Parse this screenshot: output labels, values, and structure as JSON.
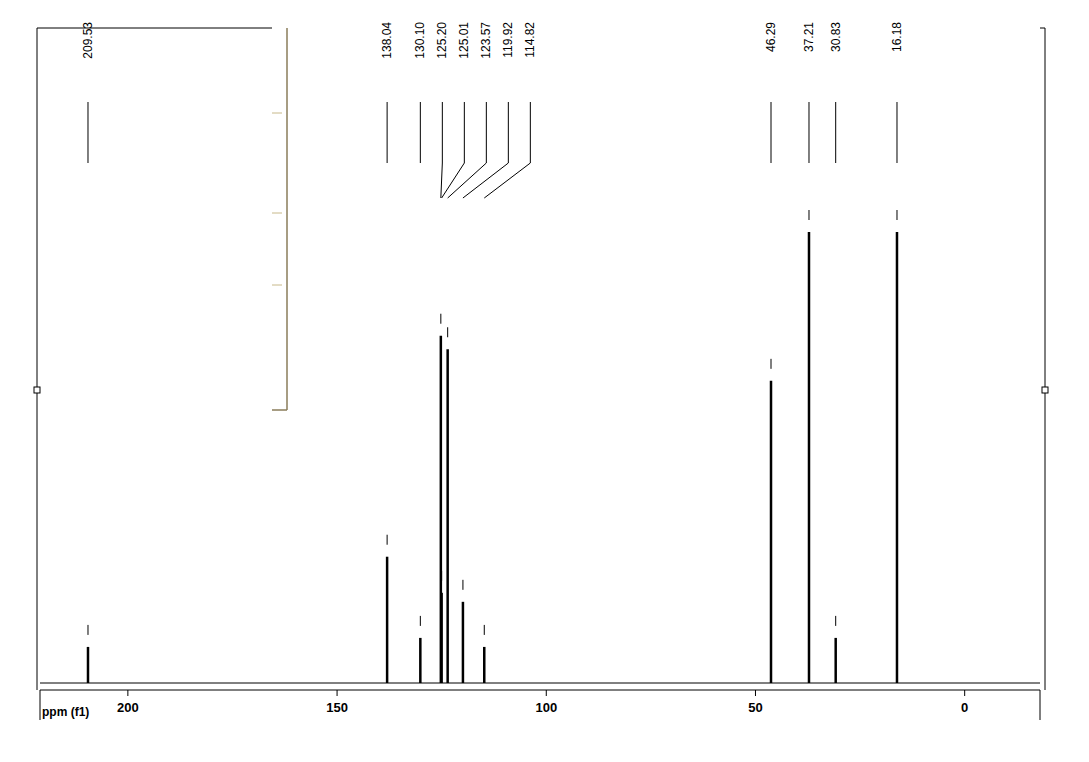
{
  "chart_data": {
    "type": "stem",
    "x_label": "ppm (f1)",
    "x": [
      209.53,
      138.04,
      130.1,
      125.2,
      125.01,
      123.57,
      119.92,
      114.82,
      46.29,
      37.21,
      30.83,
      16.18
    ],
    "x_labels": [
      "209.53",
      "138.04",
      "130.10",
      "125.20",
      "125.01",
      "123.57",
      "119.92",
      "114.82",
      "46.29",
      "37.21",
      "30.83",
      "16.18"
    ],
    "values": [
      8,
      28,
      10,
      77,
      20,
      74,
      18,
      8,
      67,
      100,
      10,
      100
    ],
    "color": "#000000",
    "xlim": [
      221,
      -18
    ],
    "xticks": [
      200,
      150,
      100,
      50,
      0
    ],
    "ylim": [
      0,
      100
    ],
    "tick_labels": "x",
    "grid": false
  }
}
